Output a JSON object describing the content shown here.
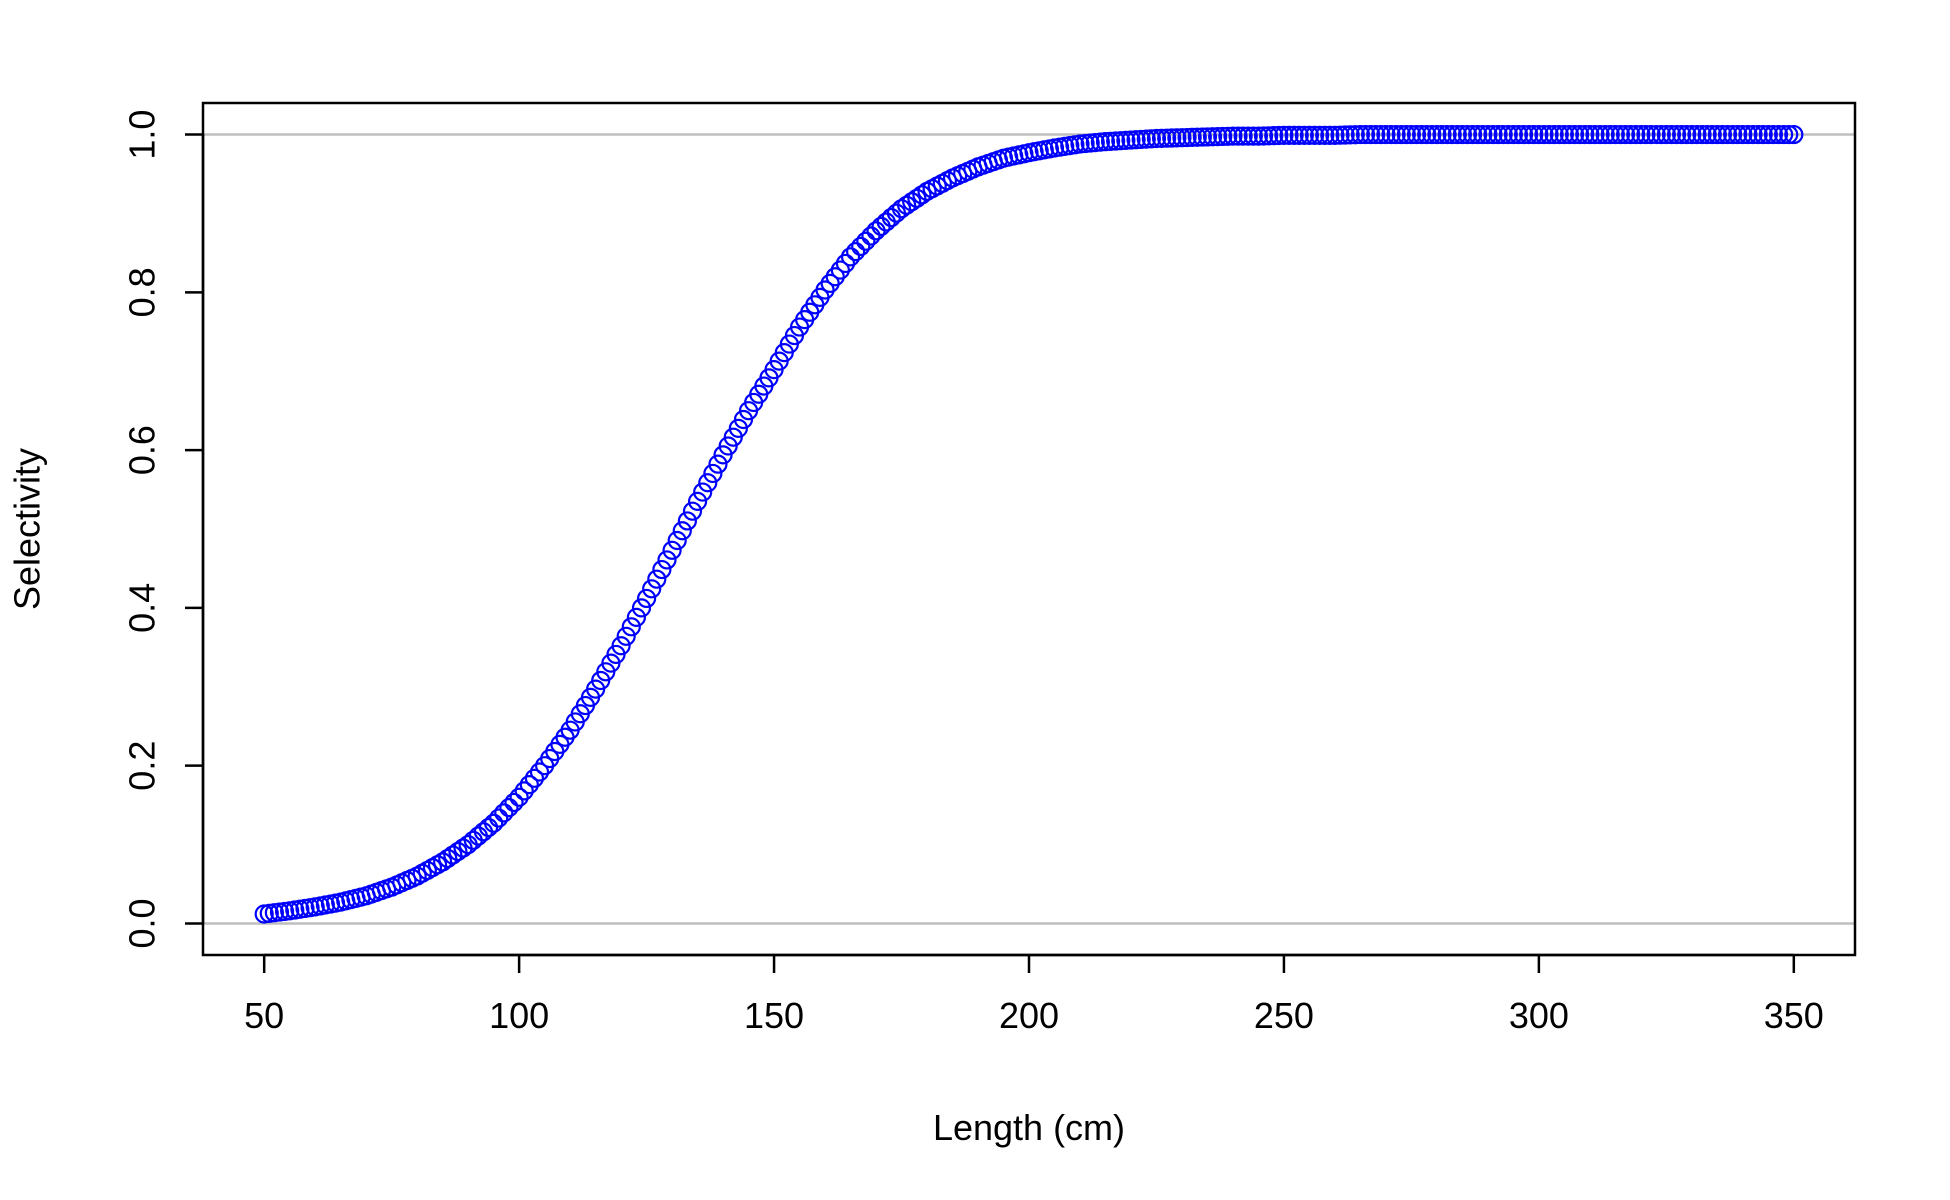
{
  "chart_data": {
    "type": "scatter",
    "title": "",
    "xlabel": "Length (cm)",
    "ylabel": "Selectivity",
    "xlim": [
      38,
      362
    ],
    "ylim": [
      -0.04,
      1.04
    ],
    "x_ticks": [
      50,
      100,
      150,
      200,
      250,
      300,
      350
    ],
    "x_tick_labels": [
      "50",
      "100",
      "150",
      "200",
      "250",
      "300",
      "350"
    ],
    "y_ticks": [
      0.0,
      0.2,
      0.4,
      0.6,
      0.8,
      1.0
    ],
    "y_tick_labels": [
      "0.0",
      "0.2",
      "0.4",
      "0.6",
      "0.8",
      "1.0"
    ],
    "reference_lines": [
      0,
      1
    ],
    "reference_line_color": "#bebebe",
    "marker": "open-circle",
    "marker_color": "#0000ff",
    "grid": false,
    "legend": "none",
    "series": [
      {
        "x": [
          50,
          55,
          60,
          65,
          70,
          75,
          80,
          85,
          90,
          95,
          100,
          105,
          110,
          115,
          120,
          125,
          130,
          135,
          140,
          145,
          150,
          155,
          160,
          165,
          170,
          175,
          180,
          185,
          190,
          195,
          200,
          205,
          210,
          215,
          220,
          225,
          230,
          235,
          240,
          245,
          250,
          255,
          260,
          265,
          270,
          275,
          280,
          285,
          290,
          295,
          300,
          305,
          310,
          315,
          320,
          325,
          330,
          335,
          340,
          345,
          350
        ],
        "y": [
          0.012,
          0.016,
          0.021,
          0.027,
          0.035,
          0.046,
          0.06,
          0.078,
          0.1,
          0.127,
          0.16,
          0.2,
          0.245,
          0.297,
          0.352,
          0.412,
          0.473,
          0.535,
          0.594,
          0.65,
          0.702,
          0.756,
          0.803,
          0.845,
          0.878,
          0.906,
          0.928,
          0.945,
          0.959,
          0.97,
          0.977,
          0.983,
          0.988,
          0.991,
          0.993,
          0.995,
          0.996,
          0.997,
          0.998,
          0.998,
          0.999,
          0.999,
          0.999,
          1.0,
          1.0,
          1.0,
          1.0,
          1.0,
          1.0,
          1.0,
          1.0,
          1.0,
          1.0,
          1.0,
          1.0,
          1.0,
          1.0,
          1.0,
          1.0,
          1.0,
          1.0
        ]
      }
    ]
  }
}
